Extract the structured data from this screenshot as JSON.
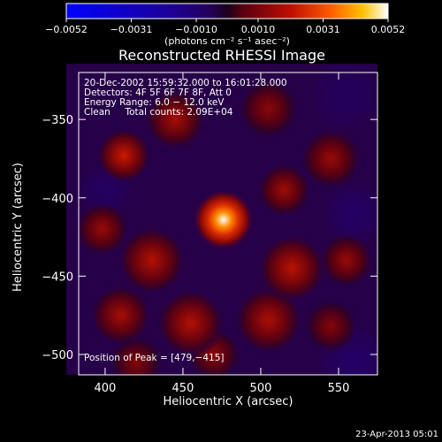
{
  "chart_data": {
    "type": "heatmap",
    "title": "Reconstructed RHESSI Image",
    "xlabel": "Heliocentric X (arcsec)",
    "ylabel": "Heliocentric Y (arcsec)",
    "xlim": [
      383,
      575
    ],
    "ylim": [
      -513,
      -320
    ],
    "x_ticks": [
      400,
      450,
      500,
      550
    ],
    "y_ticks": [
      -350,
      -400,
      -450,
      -500
    ],
    "x_tick_labels": [
      "400",
      "450",
      "500",
      "550"
    ],
    "y_tick_labels": [
      "−350",
      "−400",
      "−450",
      "−500"
    ],
    "colorbar": {
      "ticks": [
        -0.0052,
        -0.0031,
        -0.001,
        0.001,
        0.0031,
        0.0052
      ],
      "tick_labels": [
        "−0.0052",
        "−0.0031",
        "−0.0010",
        "0.0010",
        "0.0031",
        "0.0052"
      ],
      "range": [
        -0.0052,
        0.0052
      ],
      "unit_label": "(photons cm⁻² s⁻¹ asec⁻²)"
    },
    "info_lines": [
      "20-Dec-2002 15:59:32.000 to 16:01:28.000",
      "Detectors: 4F 5F 6F 7F 8F, Att 0",
      "Energy Range: 6.0 − 12.0 keV",
      "Clean     Total counts: 2.09E+04"
    ],
    "peak_label": "Position of Peak = [479,−415]",
    "peak": {
      "x": 479,
      "y": -415
    },
    "sources": [
      {
        "x": 476,
        "y": -414,
        "value": 0.0052,
        "sigma": 9
      },
      {
        "x": 412,
        "y": -373,
        "value": 0.0022,
        "sigma": 8
      },
      {
        "x": 445,
        "y": -350,
        "value": 0.0016,
        "sigma": 9
      },
      {
        "x": 505,
        "y": -343,
        "value": 0.0012,
        "sigma": 9
      },
      {
        "x": 545,
        "y": -375,
        "value": 0.0014,
        "sigma": 9
      },
      {
        "x": 515,
        "y": -395,
        "value": 0.0015,
        "sigma": 8
      },
      {
        "x": 398,
        "y": -420,
        "value": 0.0014,
        "sigma": 8
      },
      {
        "x": 430,
        "y": -440,
        "value": 0.0018,
        "sigma": 10
      },
      {
        "x": 520,
        "y": -445,
        "value": 0.0019,
        "sigma": 10
      },
      {
        "x": 555,
        "y": -440,
        "value": 0.0014,
        "sigma": 8
      },
      {
        "x": 410,
        "y": -475,
        "value": 0.0016,
        "sigma": 9
      },
      {
        "x": 455,
        "y": -480,
        "value": 0.0018,
        "sigma": 10
      },
      {
        "x": 505,
        "y": -478,
        "value": 0.0017,
        "sigma": 10
      },
      {
        "x": 545,
        "y": -482,
        "value": 0.0011,
        "sigma": 8
      },
      {
        "x": 470,
        "y": -500,
        "value": 0.0012,
        "sigma": 8
      },
      {
        "x": 420,
        "y": -505,
        "value": 0.0011,
        "sigma": 8
      },
      {
        "x": 560,
        "y": -410,
        "value": -0.0008,
        "sigma": 10
      },
      {
        "x": 400,
        "y": -395,
        "value": -0.0007,
        "sigma": 9
      },
      {
        "x": 560,
        "y": -505,
        "value": -0.0008,
        "sigma": 12
      },
      {
        "x": 555,
        "y": -335,
        "value": -0.0006,
        "sigma": 12
      }
    ]
  },
  "footer": {
    "timestamp": "23-Apr-2013 05:01"
  }
}
